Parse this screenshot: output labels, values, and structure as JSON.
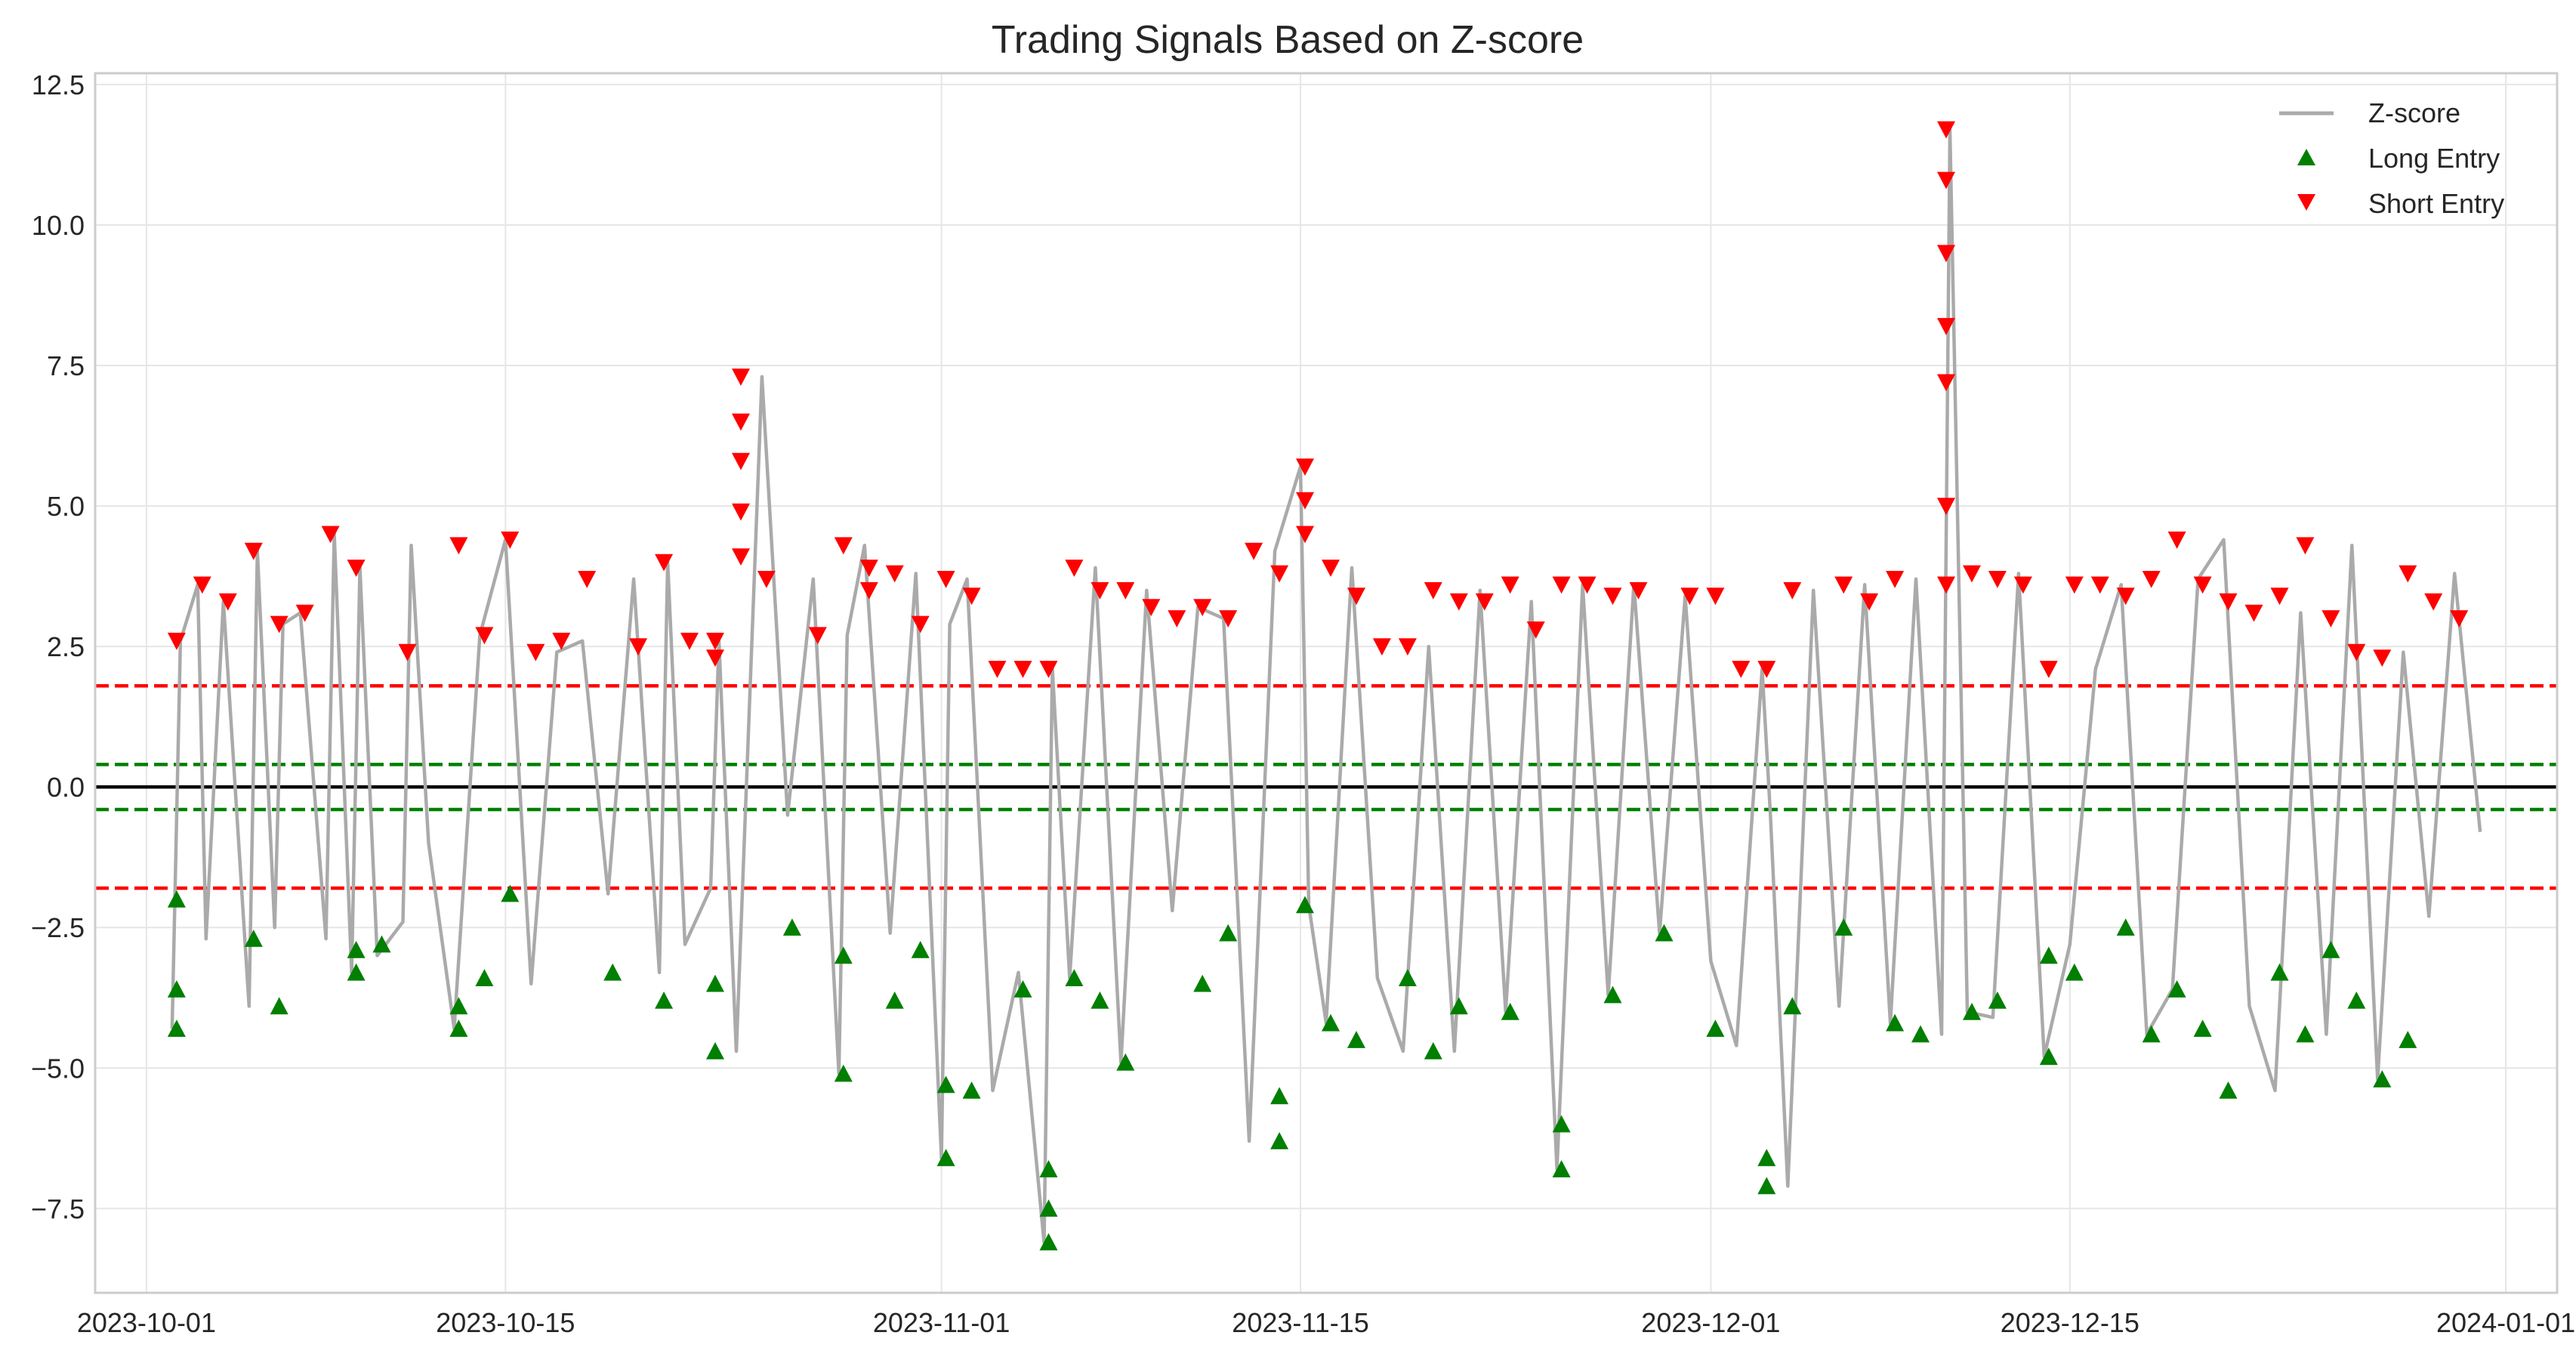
{
  "chart_data": {
    "type": "line",
    "title": "Trading Signals Based on Z-score",
    "xlabel": "",
    "ylabel": "",
    "xlim": [
      "2023-09-29",
      "2024-01-03"
    ],
    "ylim": [
      -9.0,
      12.7
    ],
    "x_ticks": [
      "2023-10-01",
      "2023-10-15",
      "2023-11-01",
      "2023-11-15",
      "2023-12-01",
      "2023-12-15",
      "2024-01-01"
    ],
    "y_ticks": [
      -7.5,
      -5.0,
      -2.5,
      0.0,
      2.5,
      5.0,
      7.5,
      10.0,
      12.5
    ],
    "y_tick_labels": [
      "−7.5",
      "−5.0",
      "−2.5",
      "0.0",
      "2.5",
      "5.0",
      "7.5",
      "10.0",
      "12.5"
    ],
    "grid": true,
    "legend": "top-right",
    "reference_lines": [
      {
        "y": 1.8,
        "color": "#ff0000",
        "style": "dashed"
      },
      {
        "y": -1.8,
        "color": "#ff0000",
        "style": "dashed"
      },
      {
        "y": 0.4,
        "color": "#007f00",
        "style": "dashed"
      },
      {
        "y": -0.4,
        "color": "#007f00",
        "style": "dashed"
      },
      {
        "y": 0.0,
        "color": "#000000",
        "style": "solid"
      }
    ],
    "series": [
      {
        "name": "Z-score",
        "kind": "line",
        "color": "#aaaaaa",
        "x": [
          "2023-10-02",
          "2023-10-02",
          "2023-10-03",
          "2023-10-03",
          "2023-10-04",
          "2023-10-05",
          "2023-10-05",
          "2023-10-06",
          "2023-10-06",
          "2023-10-07",
          "2023-10-08",
          "2023-10-08",
          "2023-10-09",
          "2023-10-09",
          "2023-10-10",
          "2023-10-11",
          "2023-10-11",
          "2023-10-12",
          "2023-10-13",
          "2023-10-14",
          "2023-10-15",
          "2023-10-16",
          "2023-10-17",
          "2023-10-18",
          "2023-10-19",
          "2023-10-20",
          "2023-10-21",
          "2023-10-21",
          "2023-10-22",
          "2023-10-23",
          "2023-10-23",
          "2023-10-24",
          "2023-10-25",
          "2023-10-26",
          "2023-10-27",
          "2023-10-28",
          "2023-10-28",
          "2023-10-29",
          "2023-10-30",
          "2023-10-31",
          "2023-11-01",
          "2023-11-01",
          "2023-11-02",
          "2023-11-03",
          "2023-11-04",
          "2023-11-05",
          "2023-11-05",
          "2023-11-06",
          "2023-11-07",
          "2023-11-08",
          "2023-11-09",
          "2023-11-10",
          "2023-11-11",
          "2023-11-12",
          "2023-11-13",
          "2023-11-14",
          "2023-11-15",
          "2023-11-15",
          "2023-11-16",
          "2023-11-17",
          "2023-11-18",
          "2023-11-19",
          "2023-11-20",
          "2023-11-21",
          "2023-11-22",
          "2023-11-23",
          "2023-11-24",
          "2023-11-25",
          "2023-11-26",
          "2023-11-27",
          "2023-11-28",
          "2023-11-29",
          "2023-11-30",
          "2023-12-01",
          "2023-12-02",
          "2023-12-03",
          "2023-12-03",
          "2023-12-04",
          "2023-12-05",
          "2023-12-06",
          "2023-12-07",
          "2023-12-08",
          "2023-12-09",
          "2023-12-10",
          "2023-12-10",
          "2023-12-11",
          "2023-12-12",
          "2023-12-13",
          "2023-12-14",
          "2023-12-15",
          "2023-12-16",
          "2023-12-17",
          "2023-12-18",
          "2023-12-19",
          "2023-12-20",
          "2023-12-21",
          "2023-12-22",
          "2023-12-23",
          "2023-12-24",
          "2023-12-25",
          "2023-12-26",
          "2023-12-27",
          "2023-12-28",
          "2023-12-29",
          "2023-12-30",
          "2023-12-31"
        ],
        "y": [
          -4.3,
          2.6,
          3.6,
          -2.7,
          3.3,
          -3.9,
          4.2,
          -2.5,
          2.9,
          3.1,
          -2.7,
          4.5,
          -3.3,
          3.9,
          -3.0,
          -2.4,
          4.3,
          -1.0,
          -4.3,
          2.7,
          4.4,
          -3.5,
          2.4,
          2.6,
          -1.9,
          3.7,
          -3.3,
          4.0,
          -2.8,
          -1.8,
          2.6,
          -4.7,
          7.3,
          -0.5,
          3.7,
          -5.1,
          2.7,
          4.3,
          -2.6,
          3.8,
          -6.6,
          2.9,
          3.7,
          -5.4,
          -3.3,
          -8.1,
          2.1,
          -3.4,
          3.9,
          -4.9,
          3.5,
          -2.2,
          3.2,
          3.0,
          -6.3,
          4.2,
          5.7,
          -2.1,
          -4.2,
          3.9,
          -3.4,
          -4.7,
          2.5,
          -4.7,
          3.5,
          -4.0,
          3.3,
          -6.8,
          3.6,
          -3.7,
          3.6,
          -2.6,
          3.4,
          -3.1,
          -4.6,
          2.1,
          -0.5,
          -7.1,
          3.5,
          -3.9,
          3.6,
          -4.2,
          3.7,
          -4.4,
          11.7,
          -4.0,
          -4.1,
          3.8,
          -4.8,
          -2.8,
          2.1,
          3.6,
          -4.4,
          -3.6,
          3.7,
          4.4,
          -3.9,
          -5.4,
          3.1,
          -4.4,
          4.3,
          -5.2,
          2.4,
          -2.3,
          3.8,
          -0.8
        ]
      },
      {
        "name": "Long Entry",
        "kind": "scatter",
        "marker": "triangle-up",
        "color": "#007f00",
        "x": [
          "2023-10-02",
          "2023-10-02",
          "2023-10-02",
          "2023-10-05",
          "2023-10-06",
          "2023-10-09",
          "2023-10-09",
          "2023-10-10",
          "2023-10-13",
          "2023-10-13",
          "2023-10-14",
          "2023-10-15",
          "2023-10-19",
          "2023-10-21",
          "2023-10-23",
          "2023-10-23",
          "2023-10-26",
          "2023-10-28",
          "2023-10-28",
          "2023-10-30",
          "2023-10-31",
          "2023-11-01",
          "2023-11-01",
          "2023-11-02",
          "2023-11-04",
          "2023-11-05",
          "2023-11-05",
          "2023-11-05",
          "2023-11-06",
          "2023-11-07",
          "2023-11-08",
          "2023-11-11",
          "2023-11-12",
          "2023-11-14",
          "2023-11-14",
          "2023-11-15",
          "2023-11-16",
          "2023-11-17",
          "2023-11-19",
          "2023-11-20",
          "2023-11-21",
          "2023-11-23",
          "2023-11-25",
          "2023-11-25",
          "2023-11-27",
          "2023-11-29",
          "2023-12-01",
          "2023-12-03",
          "2023-12-03",
          "2023-12-04",
          "2023-12-06",
          "2023-12-08",
          "2023-12-09",
          "2023-12-11",
          "2023-12-12",
          "2023-12-14",
          "2023-12-14",
          "2023-12-15",
          "2023-12-17",
          "2023-12-18",
          "2023-12-19",
          "2023-12-20",
          "2023-12-21",
          "2023-12-23",
          "2023-12-24",
          "2023-12-25",
          "2023-12-26",
          "2023-12-27",
          "2023-12-28"
        ],
        "y": [
          -2.0,
          -3.6,
          -4.3,
          -2.7,
          -3.9,
          -3.3,
          -2.9,
          -2.8,
          -4.3,
          -3.9,
          -3.4,
          -1.9,
          -3.3,
          -3.8,
          -4.7,
          -3.5,
          -2.5,
          -5.1,
          -3.0,
          -3.8,
          -2.9,
          -6.6,
          -5.3,
          -5.4,
          -3.6,
          -8.1,
          -7.5,
          -6.8,
          -3.4,
          -3.8,
          -4.9,
          -3.5,
          -2.6,
          -6.3,
          -5.5,
          -2.1,
          -4.2,
          -4.5,
          -3.4,
          -4.7,
          -3.9,
          -4.0,
          -6.8,
          -6.0,
          -3.7,
          -2.6,
          -4.3,
          -7.1,
          -6.6,
          -3.9,
          -2.5,
          -4.2,
          -4.4,
          -4.0,
          -3.8,
          -4.8,
          -3.0,
          -3.3,
          -2.5,
          -4.4,
          -3.6,
          -4.3,
          -5.4,
          -3.3,
          -4.4,
          -2.9,
          -3.8,
          -5.2,
          -4.5
        ]
      },
      {
        "name": "Short Entry",
        "kind": "scatter",
        "marker": "triangle-down",
        "color": "#ff0000",
        "x": [
          "2023-10-02",
          "2023-10-03",
          "2023-10-04",
          "2023-10-05",
          "2023-10-06",
          "2023-10-07",
          "2023-10-08",
          "2023-10-09",
          "2023-10-11",
          "2023-10-13",
          "2023-10-14",
          "2023-10-15",
          "2023-10-16",
          "2023-10-17",
          "2023-10-18",
          "2023-10-20",
          "2023-10-21",
          "2023-10-22",
          "2023-10-23",
          "2023-10-23",
          "2023-10-24",
          "2023-10-24",
          "2023-10-24",
          "2023-10-24",
          "2023-10-24",
          "2023-10-25",
          "2023-10-27",
          "2023-10-28",
          "2023-10-29",
          "2023-10-29",
          "2023-10-30",
          "2023-10-31",
          "2023-11-01",
          "2023-11-02",
          "2023-11-03",
          "2023-11-04",
          "2023-11-05",
          "2023-11-06",
          "2023-11-07",
          "2023-11-08",
          "2023-11-09",
          "2023-11-10",
          "2023-11-11",
          "2023-11-12",
          "2023-11-13",
          "2023-11-14",
          "2023-11-15",
          "2023-11-15",
          "2023-11-15",
          "2023-11-16",
          "2023-11-17",
          "2023-11-18",
          "2023-11-19",
          "2023-11-20",
          "2023-11-21",
          "2023-11-22",
          "2023-11-23",
          "2023-11-24",
          "2023-11-25",
          "2023-11-26",
          "2023-11-27",
          "2023-11-28",
          "2023-11-30",
          "2023-12-01",
          "2023-12-02",
          "2023-12-03",
          "2023-12-04",
          "2023-12-06",
          "2023-12-07",
          "2023-12-08",
          "2023-12-10",
          "2023-12-10",
          "2023-12-10",
          "2023-12-10",
          "2023-12-10",
          "2023-12-10",
          "2023-12-10",
          "2023-12-11",
          "2023-12-12",
          "2023-12-13",
          "2023-12-14",
          "2023-12-15",
          "2023-12-16",
          "2023-12-17",
          "2023-12-18",
          "2023-12-19",
          "2023-12-20",
          "2023-12-21",
          "2023-12-22",
          "2023-12-23",
          "2023-12-24",
          "2023-12-25",
          "2023-12-26",
          "2023-12-27",
          "2023-12-28",
          "2023-12-29",
          "2023-12-30"
        ],
        "y": [
          2.6,
          3.6,
          3.3,
          4.2,
          2.9,
          3.1,
          4.5,
          3.9,
          2.4,
          4.3,
          2.7,
          4.4,
          2.4,
          2.6,
          3.7,
          2.5,
          4.0,
          2.6,
          2.6,
          2.3,
          7.3,
          6.5,
          5.8,
          4.9,
          4.1,
          3.7,
          2.7,
          4.3,
          3.9,
          3.5,
          3.8,
          2.9,
          3.7,
          3.4,
          2.1,
          2.1,
          2.1,
          3.9,
          3.5,
          3.5,
          3.2,
          3.0,
          3.2,
          3.0,
          4.2,
          3.8,
          5.7,
          5.1,
          4.5,
          3.9,
          3.4,
          2.5,
          2.5,
          3.5,
          3.3,
          3.3,
          3.6,
          2.8,
          3.6,
          3.6,
          3.4,
          3.5,
          3.4,
          3.4,
          2.1,
          2.1,
          3.5,
          3.6,
          3.3,
          3.7,
          11.7,
          10.8,
          9.5,
          8.2,
          7.2,
          5.0,
          3.6,
          3.8,
          3.7,
          3.6,
          2.1,
          3.6,
          3.6,
          3.4,
          3.7,
          4.4,
          3.6,
          3.3,
          3.1,
          3.4,
          4.3,
          3.0,
          2.4,
          2.3,
          3.8,
          3.3,
          3.0
        ]
      }
    ]
  }
}
